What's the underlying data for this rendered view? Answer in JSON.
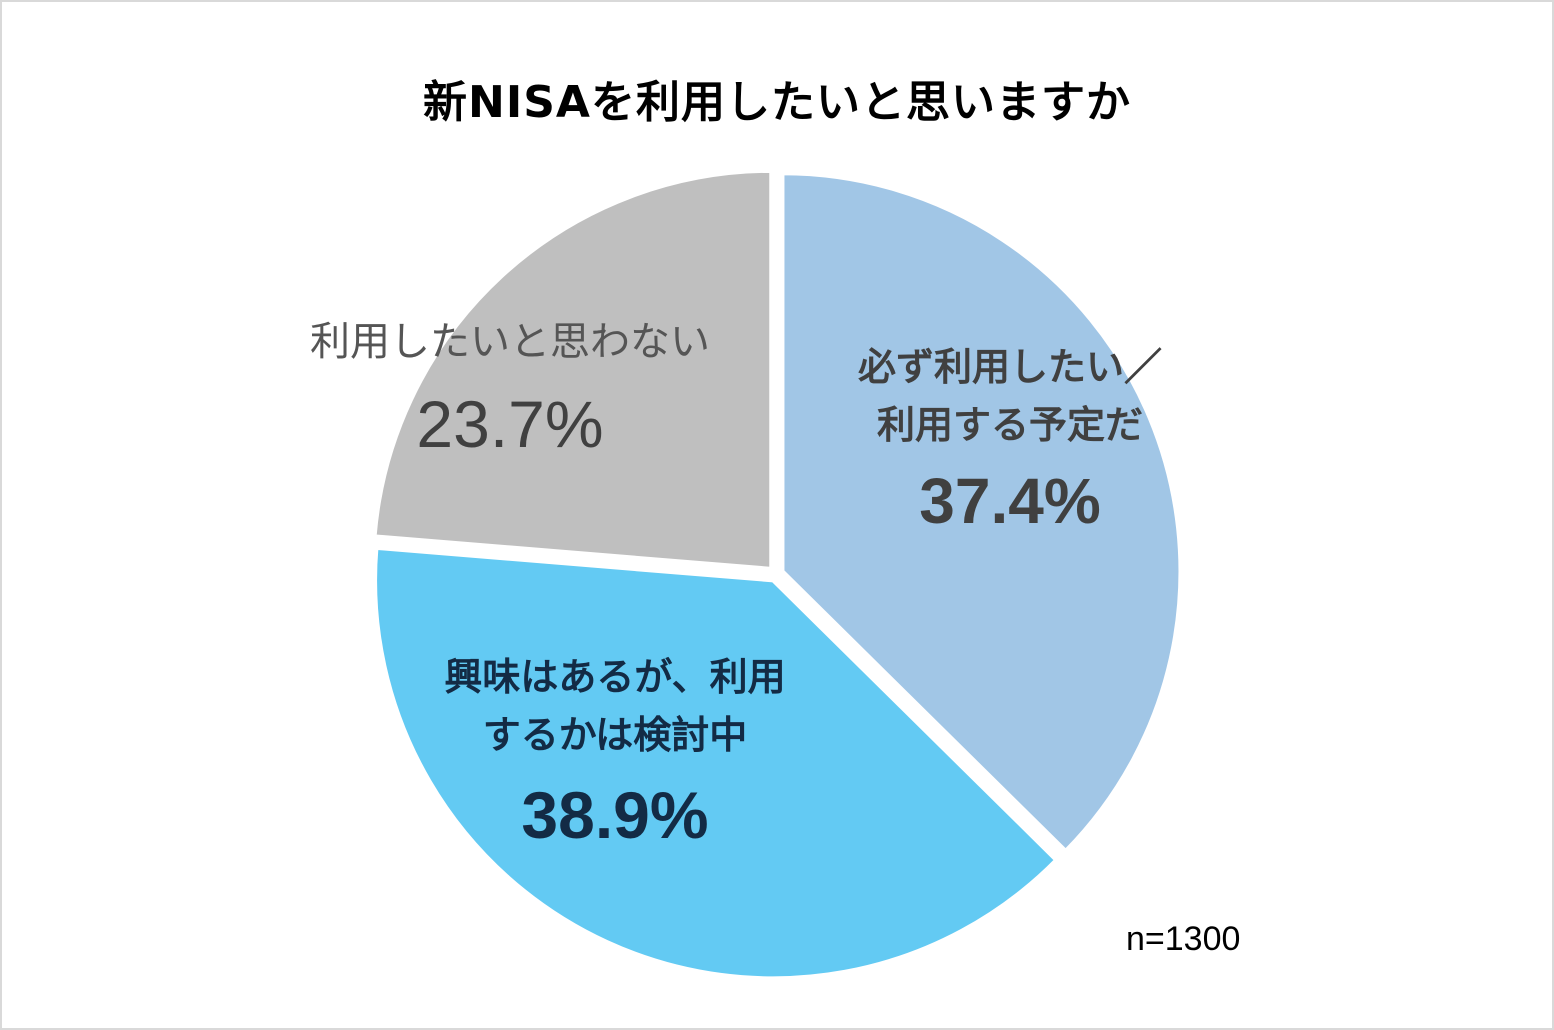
{
  "title": "新NISAを利用したいと思いますか",
  "note": "n=1300",
  "colors": {
    "slice1": "#a1c6e6",
    "slice2": "#63caf3",
    "slice3": "#bfbfbf",
    "border": "#d9d9d9"
  },
  "labels": {
    "slice1": {
      "line1": "必ず利用したい／",
      "line2": "利用する予定だ",
      "pct": "37.4%"
    },
    "slice2": {
      "line1": "興味はあるが、利用",
      "line2": "するかは検討中",
      "pct": "38.9%"
    },
    "slice3": {
      "line1": "利用したいと思わない",
      "pct": "23.7%"
    }
  },
  "chart_data": {
    "type": "pie",
    "title": "新NISAを利用したいと思いますか",
    "categories": [
      "必ず利用したい／利用する予定だ",
      "興味はあるが、利用するかは検討中",
      "利用したいと思わない"
    ],
    "values": [
      37.4,
      38.9,
      23.7
    ],
    "unit": "%",
    "start_angle": "12 o'clock, clockwise",
    "annotations": [
      "n=1300"
    ],
    "legend": "none (direct labels)"
  }
}
